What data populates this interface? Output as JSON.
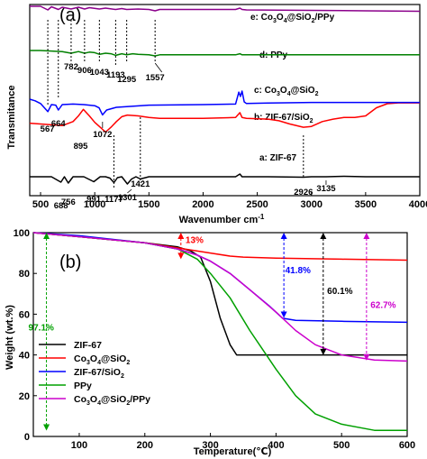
{
  "chart_data": [
    {
      "type": "line",
      "panel_label": "(a)",
      "xlabel": "Wavenumber cm",
      "xlabel_superscript": "-1",
      "ylabel": "Transmitance",
      "xlim": [
        400,
        4000
      ],
      "x_ticks": [
        500,
        1000,
        1500,
        2000,
        2500,
        3000,
        3500,
        4000
      ],
      "x_tick_labels": [
        "500",
        "1000",
        "1500",
        "2000",
        "2500",
        "3000",
        "3500",
        "4000"
      ],
      "series": [
        {
          "label": "a: ZIF-67",
          "color": "#000000",
          "x": [
            400,
            500,
            600,
            688,
            720,
            756,
            800,
            900,
            991,
            1050,
            1100,
            1140,
            1177,
            1210,
            1250,
            1301,
            1340,
            1380,
            1421,
            1500,
            1700,
            2000,
            2300,
            2340,
            2360,
            2400,
            2600,
            2926,
            3000,
            3135,
            3300,
            3500,
            3800,
            4000
          ],
          "y": [
            0,
            0,
            0,
            -1.2,
            0,
            -1.4,
            0,
            0,
            -1.1,
            0,
            0,
            -0.3,
            -1.3,
            -0.2,
            0,
            -1.6,
            -0.5,
            0,
            -0.5,
            0,
            0,
            0,
            0,
            0.6,
            0,
            0,
            0,
            -0.1,
            0,
            0,
            0.1,
            0,
            0,
            0
          ]
        },
        {
          "label": "b: ZIF-67/SiO2",
          "color": "#ff0000",
          "x": [
            400,
            500,
            600,
            700,
            800,
            850,
            895,
            950,
            1000,
            1050,
            1100,
            1150,
            1200,
            1250,
            1300,
            1400,
            1500,
            1600,
            1700,
            1800,
            2000,
            2300,
            2340,
            2360,
            2400,
            2600,
            2700,
            2800,
            2926,
            3000,
            3100,
            3200,
            3300,
            3400,
            3500,
            3600,
            3700,
            3800,
            4000
          ],
          "y": [
            0.6,
            0.5,
            0.4,
            0.3,
            0.8,
            1.5,
            2.3,
            1.5,
            0.7,
            0.1,
            -0.5,
            0.1,
            0.8,
            1.4,
            1.6,
            1.5,
            1.3,
            1.2,
            1.2,
            1.2,
            1.2,
            1.3,
            1.9,
            1.3,
            1.2,
            1.1,
            0.9,
            0.5,
            0.1,
            0.2,
            0.8,
            1.1,
            1.3,
            1.3,
            1.5,
            2.5,
            3.0,
            3.1,
            3.1
          ]
        },
        {
          "label": "c: Co3O4@SiO2",
          "color": "#0000ff",
          "x": [
            400,
            450,
            500,
            567,
            600,
            640,
            664,
            700,
            800,
            900,
            1000,
            1040,
            1072,
            1110,
            1200,
            1500,
            2000,
            2300,
            2330,
            2345,
            2360,
            2380,
            2400,
            2600,
            3000,
            3500,
            4000
          ],
          "y": [
            0,
            -0.3,
            -0.8,
            -2.3,
            -1.0,
            -1.1,
            -2.0,
            -1.0,
            -0.9,
            -1.0,
            -1.2,
            -1.6,
            -2.9,
            -2.0,
            -1.5,
            -1.1,
            -1.0,
            -0.9,
            1.3,
            0.5,
            1.5,
            -0.5,
            -0.8,
            -0.7,
            -0.6,
            -0.6,
            -0.6
          ]
        },
        {
          "label": "d: PPy",
          "color": "#008000",
          "x": [
            400,
            500,
            600,
            700,
            782,
            850,
            906,
            950,
            1000,
            1043,
            1100,
            1150,
            1193,
            1250,
            1295,
            1350,
            1400,
            1500,
            1557,
            1600,
            2000,
            2300,
            2340,
            2360,
            2400,
            3000,
            3500,
            4000
          ],
          "y": [
            1.0,
            1.0,
            0.9,
            0.8,
            0.5,
            0.8,
            0.5,
            0.7,
            0.6,
            0.3,
            0.5,
            0.4,
            0.1,
            0.4,
            0.2,
            0.4,
            0.3,
            0.2,
            0.0,
            0.2,
            0.2,
            0.2,
            0.4,
            0.2,
            0.2,
            0.2,
            0.2,
            0.2
          ]
        },
        {
          "label": "e: Co3O4@SiO2/PPy",
          "color": "#8b008b",
          "x": [
            400,
            500,
            567,
            600,
            664,
            700,
            782,
            850,
            906,
            950,
            1043,
            1100,
            1193,
            1250,
            1295,
            1400,
            1500,
            1557,
            1600,
            2000,
            2300,
            2340,
            2360,
            2400,
            3000,
            3500,
            4000
          ],
          "y": [
            2.0,
            2.0,
            1.2,
            1.9,
            1.3,
            1.8,
            1.4,
            1.8,
            1.4,
            1.7,
            1.4,
            1.6,
            1.3,
            1.5,
            1.3,
            1.4,
            1.3,
            1.0,
            1.3,
            1.3,
            1.3,
            1.6,
            1.3,
            1.2,
            1.1,
            1.0,
            0.9
          ]
        }
      ],
      "peak_labels": [
        "567",
        "664",
        "688",
        "756",
        "782",
        "895",
        "906",
        "991",
        "1043",
        "1072",
        "1177",
        "1193",
        "1295",
        "1301",
        "1421",
        "1557",
        "2926",
        "3135"
      ]
    },
    {
      "type": "line",
      "panel_label": "(b)",
      "xlabel": "Temperature(℃)",
      "ylabel": "Weight (wt.%)",
      "xlim": [
        30,
        600
      ],
      "ylim": [
        0,
        100
      ],
      "x_ticks": [
        100,
        200,
        300,
        400,
        500,
        600
      ],
      "x_tick_labels": [
        "100",
        "200",
        "300",
        "400",
        "500",
        "600"
      ],
      "y_ticks": [
        0,
        20,
        40,
        60,
        80,
        100
      ],
      "y_tick_labels": [
        "0",
        "20",
        "40",
        "60",
        "80",
        "100"
      ],
      "legend_position": "bottom-left",
      "series": [
        {
          "name": "ZIF-67",
          "color": "#000000",
          "x": [
            30,
            100,
            150,
            200,
            250,
            270,
            285,
            300,
            315,
            330,
            340,
            400,
            500,
            600
          ],
          "y": [
            100,
            98,
            96.5,
            95,
            93,
            91,
            88,
            76,
            58,
            45,
            40,
            40,
            40,
            40
          ]
        },
        {
          "name": "Co3O4@SiO2",
          "color": "#ff0000",
          "x": [
            30,
            100,
            200,
            300,
            330,
            350,
            400,
            500,
            600
          ],
          "y": [
            100,
            98,
            95,
            90,
            88.5,
            88,
            87.5,
            87,
            86.5
          ]
        },
        {
          "name": "ZIF-67/SiO2",
          "color": "#0000ff",
          "x": [
            30,
            100,
            200,
            250,
            280,
            300,
            330,
            360,
            390,
            410,
            430,
            500,
            600
          ],
          "y": [
            100,
            98.5,
            95,
            92,
            89,
            86,
            80,
            72,
            64,
            58,
            57,
            56.5,
            56
          ]
        },
        {
          "name": "PPy",
          "color": "#00a000",
          "x": [
            30,
            100,
            200,
            250,
            280,
            300,
            330,
            360,
            400,
            430,
            460,
            500,
            550,
            600
          ],
          "y": [
            100,
            98,
            95,
            92,
            87,
            80,
            68,
            52,
            33,
            20,
            11,
            6,
            3,
            3
          ]
        },
        {
          "name": "Co3O4@SiO2/PPy",
          "color": "#cc00cc",
          "x": [
            30,
            100,
            200,
            250,
            280,
            300,
            330,
            360,
            400,
            430,
            460,
            500,
            550,
            600
          ],
          "y": [
            100,
            98,
            95,
            92,
            89,
            86,
            80,
            72,
            61,
            52,
            45,
            40,
            37.5,
            37
          ]
        }
      ],
      "annotations": [
        {
          "text": "97.1%",
          "color": "#00a000"
        },
        {
          "text": "13%",
          "color": "#ff0000"
        },
        {
          "text": "41.8%",
          "color": "#0000ff"
        },
        {
          "text": "60.1%",
          "color": "#000000"
        },
        {
          "text": "62.7%",
          "color": "#cc00cc"
        }
      ]
    }
  ]
}
